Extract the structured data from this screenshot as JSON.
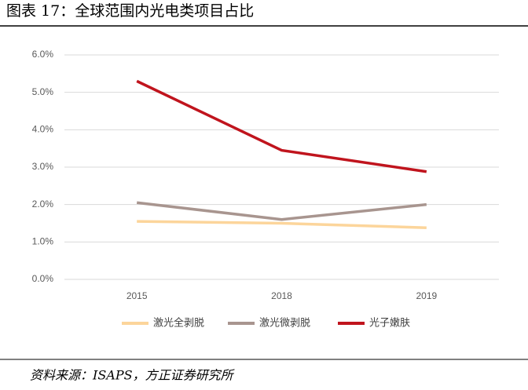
{
  "chart_data": {
    "type": "line",
    "title": "图表 17：全球范围内光电类项目占比",
    "source": "资料来源：ISAPS，方正证券研究所",
    "categories": [
      "2015",
      "2018",
      "2019"
    ],
    "series": [
      {
        "name": "激光全剥脱",
        "color": "#fcd59b",
        "values": [
          1.55,
          1.5,
          1.38
        ]
      },
      {
        "name": "激光微剥脱",
        "color": "#a8958f",
        "values": [
          2.05,
          1.6,
          2.0
        ]
      },
      {
        "name": "光子嫩肤",
        "color": "#c0141d",
        "values": [
          5.3,
          3.45,
          2.88
        ]
      }
    ],
    "ylim": [
      0,
      6
    ],
    "yticks": [
      {
        "value": 0,
        "label": "0.0%"
      },
      {
        "value": 1,
        "label": "1.0%"
      },
      {
        "value": 2,
        "label": "2.0%"
      },
      {
        "value": 3,
        "label": "3.0%"
      },
      {
        "value": 4,
        "label": "4.0%"
      },
      {
        "value": 5,
        "label": "5.0%"
      },
      {
        "value": 6,
        "label": "6.0%"
      }
    ],
    "grid": true,
    "legend": "bottom"
  }
}
